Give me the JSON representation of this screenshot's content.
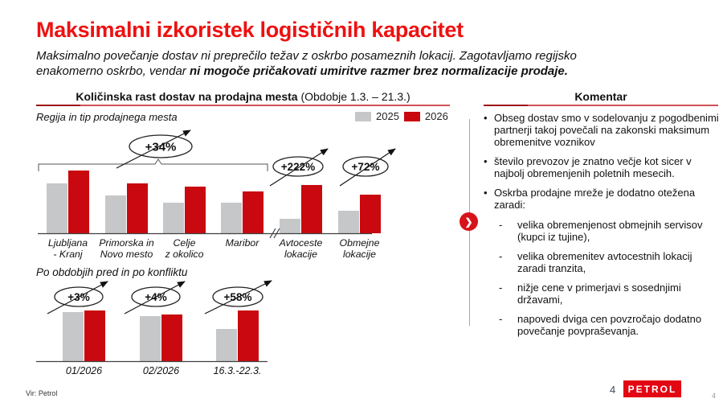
{
  "slide": {
    "title": "Maksimalni izkoristek logističnih kapacitet",
    "subtitle_line1": "Maksimalno povečanje dostav ni preprečilo težav z oskrbo posameznih lokacij. Zagotavljamo regijsko",
    "subtitle_line2_regular": "enakomerno oskrbo, vendar ",
    "subtitle_line2_bold": "ni mogoče pričakovati umiritve razmer brez normalizacije prodaje."
  },
  "left_panel": {
    "header_bold": "Količinska rast dostav na prodajna mesta",
    "header_regular": " (Obdobje 1.3. – 21.3.)",
    "axis_note": "Regija in tip prodajnega mesta",
    "chart2_title": "Po obdobjih pred in po konfliktu",
    "legend": [
      {
        "label": "2025",
        "color": "#c6c7c8"
      },
      {
        "label": "2026",
        "color": "#c9090f"
      }
    ]
  },
  "right_panel": {
    "header": "Komentar",
    "bullet_char": "•",
    "sub_bullet_char": "-",
    "chevron_icon": "❯",
    "items": [
      {
        "level": 1,
        "text": "Obseg dostav smo v sodelovanju z pogodbenimi partnerji takoj povečali na zakonski maksimum obremenitve voznikov"
      },
      {
        "level": 1,
        "text": "število prevozov je znatno večje kot sicer v najbolj obremenjenih poletnih mesecih."
      },
      {
        "level": 1,
        "text": "Oskrba prodajne mreže je dodatno otežena zaradi:"
      },
      {
        "level": 2,
        "text": "velika obremenjenost obmejnih servisov (kupci iz tujine),"
      },
      {
        "level": 2,
        "text": "velika obremenitev avtocestnih lokacij zaradi tranzita,"
      },
      {
        "level": 2,
        "text": "nižje cene v primerjavi s sosednjimi državami,"
      },
      {
        "level": 2,
        "text": "napovedi dviga cen povzročajo dodatno povečanje povpraševanja."
      }
    ]
  },
  "footer": {
    "source": "Vir: Petrol",
    "page_number": "4",
    "logo_text": "PETROL",
    "corner_page_number": "4"
  },
  "colors": {
    "title_red": "#ee1111",
    "bar_gray": "#c6c7c8",
    "bar_red": "#c9090f",
    "logo_red": "#e30613"
  },
  "chart_data": [
    {
      "type": "bar",
      "title": "Količinska rast dostav na prodajna mesta (Obdobje 1.3. – 21.3.)",
      "xlabel": "Regija in tip prodajnega mesta",
      "ylabel": "",
      "grid": false,
      "legend_position": "top-right",
      "value_note": "relative bar heights, no numeric axis shown",
      "categories": [
        "Ljubljana|- Kranj",
        "Primorska in|Novo mesto",
        "Celje|z okolico",
        "Maribor",
        "Avtoceste|lokacije",
        "Obmejne|lokacije"
      ],
      "series": [
        {
          "name": "2025",
          "color": "#c6c7c8",
          "values": [
            62,
            47,
            38,
            38,
            18,
            28
          ]
        },
        {
          "name": "2026",
          "color": "#c9090f",
          "values": [
            78,
            62,
            58,
            52,
            60,
            48
          ]
        }
      ],
      "axis_break_between": [
        "Maribor",
        "Avtoceste lokacije"
      ],
      "annotations": [
        {
          "label": "+34%",
          "applies_to": "Ljubljana - Kranj, Primorska in Novo mesto, Celje z okolico, Maribor (bracketed group)"
        },
        {
          "label": "+222%",
          "applies_to": "Avtoceste lokacije"
        },
        {
          "label": "+72%",
          "applies_to": "Obmejne lokacije"
        }
      ]
    },
    {
      "type": "bar",
      "title": "Po obdobjih pred in po konfliktu",
      "xlabel": "",
      "ylabel": "",
      "grid": false,
      "value_note": "relative bar heights, no numeric axis shown",
      "categories": [
        "01/2026",
        "02/2026",
        "16.3.-22.3."
      ],
      "series": [
        {
          "name": "2025",
          "color": "#c6c7c8",
          "values": [
            61,
            56,
            40
          ]
        },
        {
          "name": "2026",
          "color": "#c9090f",
          "values": [
            63,
            58,
            63
          ]
        }
      ],
      "annotations": [
        {
          "label": "+3%",
          "applies_to": "01/2026"
        },
        {
          "label": "+4%",
          "applies_to": "02/2026"
        },
        {
          "label": "+58%",
          "applies_to": "16.3.-22.3."
        }
      ]
    }
  ]
}
